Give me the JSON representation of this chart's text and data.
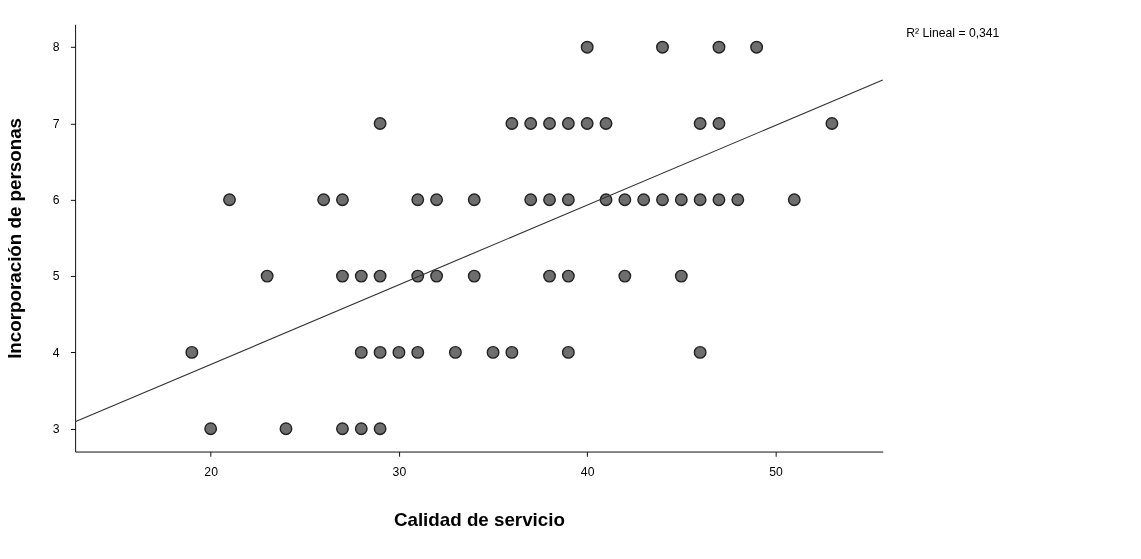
{
  "chart_data": {
    "type": "scatter",
    "xlabel": "Calidad de servicio",
    "ylabel": "Incorporación de personas",
    "xlim": [
      12.8,
      55.7
    ],
    "ylim": [
      2.7,
      8.3
    ],
    "xticks": [
      20,
      30,
      40,
      50
    ],
    "yticks": [
      3,
      4,
      5,
      6,
      7,
      8
    ],
    "grid": false,
    "annotations": [
      "R² Lineal = 0,341"
    ],
    "series": [
      {
        "color": "#6e6e6e",
        "marker": "circle",
        "x": [
          40,
          44,
          47,
          49,
          29,
          36,
          37,
          38,
          39,
          40,
          41,
          46,
          47,
          53,
          21,
          26,
          27,
          31,
          32,
          34,
          37,
          38,
          39,
          41,
          42,
          43,
          44,
          45,
          46,
          47,
          48,
          51,
          23,
          27,
          28,
          29,
          31,
          32,
          34,
          38,
          39,
          42,
          45,
          19,
          28,
          29,
          30,
          31,
          33,
          35,
          36,
          39,
          46,
          20,
          24,
          27,
          28,
          29
        ],
        "values": [
          8,
          8,
          8,
          8,
          7,
          7,
          7,
          7,
          7,
          7,
          7,
          7,
          7,
          7,
          6,
          6,
          6,
          6,
          6,
          6,
          6,
          6,
          6,
          6,
          6,
          6,
          6,
          6,
          6,
          6,
          6,
          6,
          5,
          5,
          5,
          5,
          5,
          5,
          5,
          5,
          5,
          5,
          5,
          4,
          4,
          4,
          4,
          4,
          4,
          4,
          4,
          4,
          4,
          3,
          3,
          3,
          3,
          3
        ]
      },
      {
        "type": "line",
        "color": "#333333",
        "x": [
          12.8,
          55.7
        ],
        "values": [
          3.09,
          7.57
        ],
        "line_style": "solid"
      }
    ]
  }
}
